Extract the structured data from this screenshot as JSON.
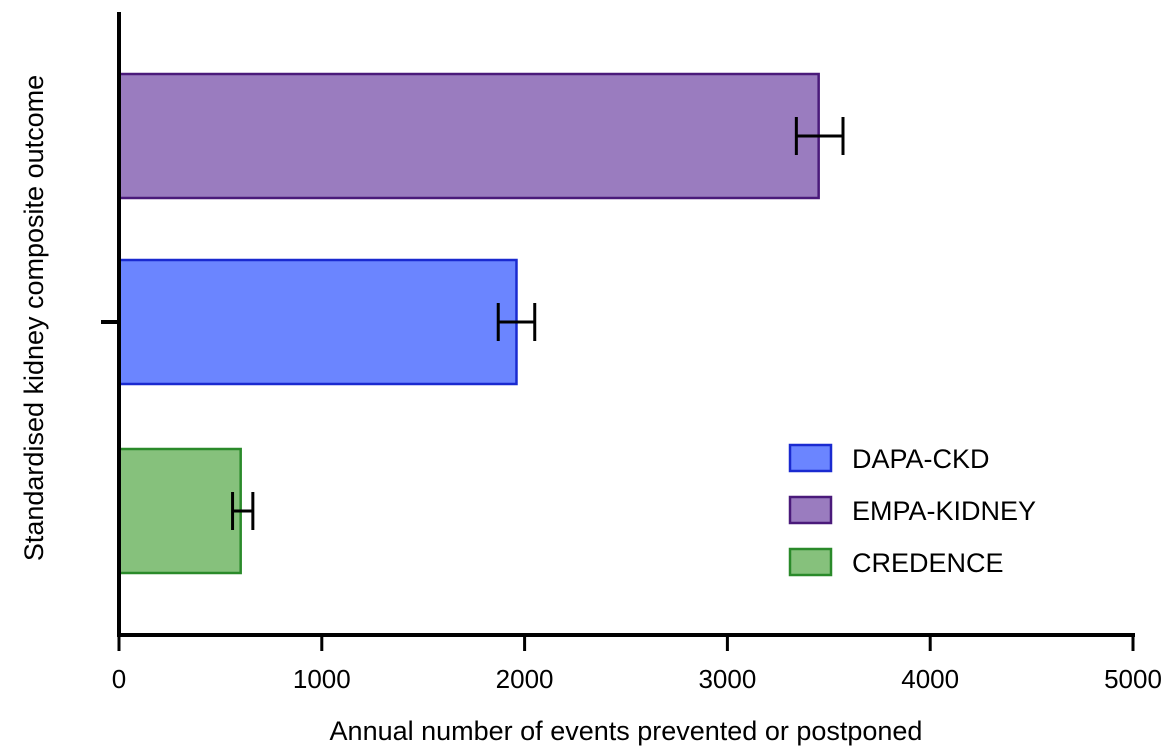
{
  "chart_data": {
    "type": "bar",
    "orientation": "horizontal",
    "xlabel": "Annual number of events prevented or postponed",
    "ylabel": "Standardised kidney composite outcome",
    "xlim": [
      0,
      5000
    ],
    "x_ticks": [
      0,
      1000,
      2000,
      3000,
      4000,
      5000
    ],
    "grid": false,
    "legend_position": "bottom-right",
    "series": [
      {
        "name": "EMPA-KIDNEY",
        "value": 3450,
        "error_low": 3340,
        "error_high": 3570,
        "fill": "#9a7cbf",
        "stroke": "#4a1a7a"
      },
      {
        "name": "DAPA-CKD",
        "value": 1960,
        "error_low": 1870,
        "error_high": 2050,
        "fill": "#6b85ff",
        "stroke": "#1a2ad0"
      },
      {
        "name": "CREDENCE",
        "value": 600,
        "error_low": 560,
        "error_high": 660,
        "fill": "#86c17c",
        "stroke": "#2a8a2a"
      }
    ],
    "legend": [
      {
        "name": "DAPA-CKD",
        "fill": "#6b85ff",
        "stroke": "#1a2ad0"
      },
      {
        "name": "EMPA-KIDNEY",
        "fill": "#9a7cbf",
        "stroke": "#4a1a7a"
      },
      {
        "name": "CREDENCE",
        "fill": "#86c17c",
        "stroke": "#2a8a2a"
      }
    ]
  }
}
